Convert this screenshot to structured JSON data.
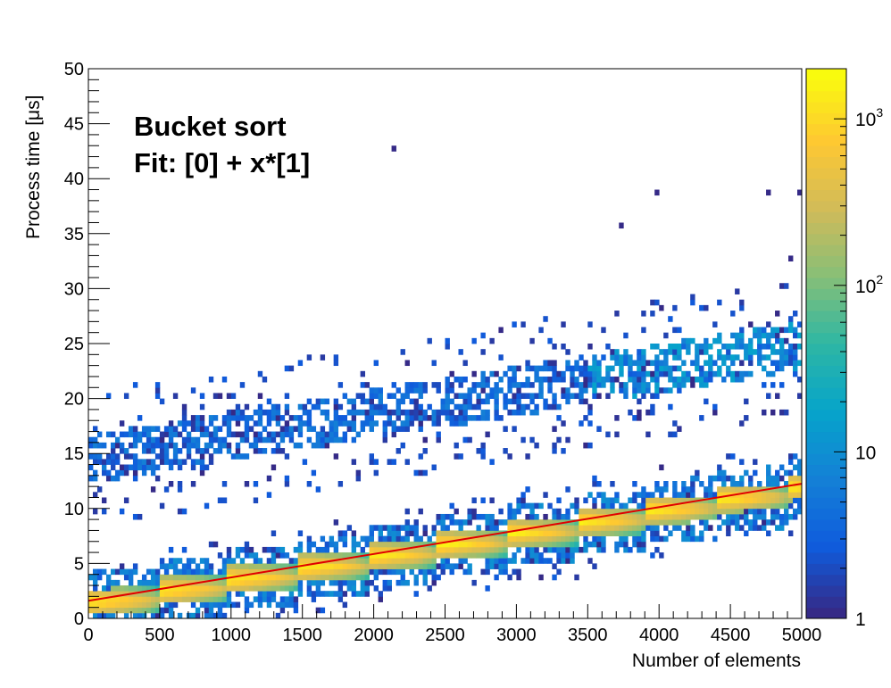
{
  "chart_data": {
    "type": "heatmap",
    "title": "",
    "annotations": [
      "Bucket sort",
      "Fit: [0] + x*[1]"
    ],
    "xlabel": "Number of elements",
    "ylabel": "Process time [μs]",
    "xlim": [
      0,
      5000
    ],
    "ylim": [
      0,
      50
    ],
    "x_ticks": [
      "0",
      "500",
      "1000",
      "1500",
      "2000",
      "2500",
      "3000",
      "3500",
      "4000",
      "4500",
      "5000"
    ],
    "y_ticks": [
      "0",
      "5",
      "10",
      "15",
      "20",
      "25",
      "30",
      "35",
      "40",
      "45",
      "50"
    ],
    "colorbar": {
      "scale": "log",
      "range": [
        1,
        2000
      ],
      "tick_values": [
        1,
        10,
        100,
        1000
      ],
      "tick_labels": [
        {
          "base": "1",
          "exp": ""
        },
        {
          "base": "10",
          "exp": ""
        },
        {
          "base": "10",
          "exp": "2"
        },
        {
          "base": "10",
          "exp": "3"
        }
      ],
      "colors": [
        "#352a87",
        "#0f5cdd",
        "#1481d6",
        "#06a4ca",
        "#2eb7a4",
        "#87bf77",
        "#d1bb59",
        "#fec832",
        "#f9fb0e"
      ]
    },
    "fit": {
      "function": "[0] + x*[1]",
      "p0": 1.6,
      "p1": 0.00213,
      "x_range": [
        0,
        5000
      ],
      "color": "#e00000"
    },
    "bands": [
      {
        "name": "main",
        "y_start": 1.6,
        "slope": 0.00213,
        "step_x": 490,
        "count_peak": 2000,
        "width": 1.2
      },
      {
        "name": "secondary",
        "y_start": 14.5,
        "slope": 0.00205,
        "step_x": 490,
        "count_peak": 8,
        "width": 2.2
      }
    ],
    "outliers": [
      {
        "x": 2150,
        "y": 42.5
      },
      {
        "x": 3970,
        "y": 38.5
      },
      {
        "x": 4750,
        "y": 38.5
      },
      {
        "x": 4970,
        "y": 38.5
      },
      {
        "x": 3720,
        "y": 35.5
      },
      {
        "x": 4920,
        "y": 32.5
      }
    ]
  }
}
